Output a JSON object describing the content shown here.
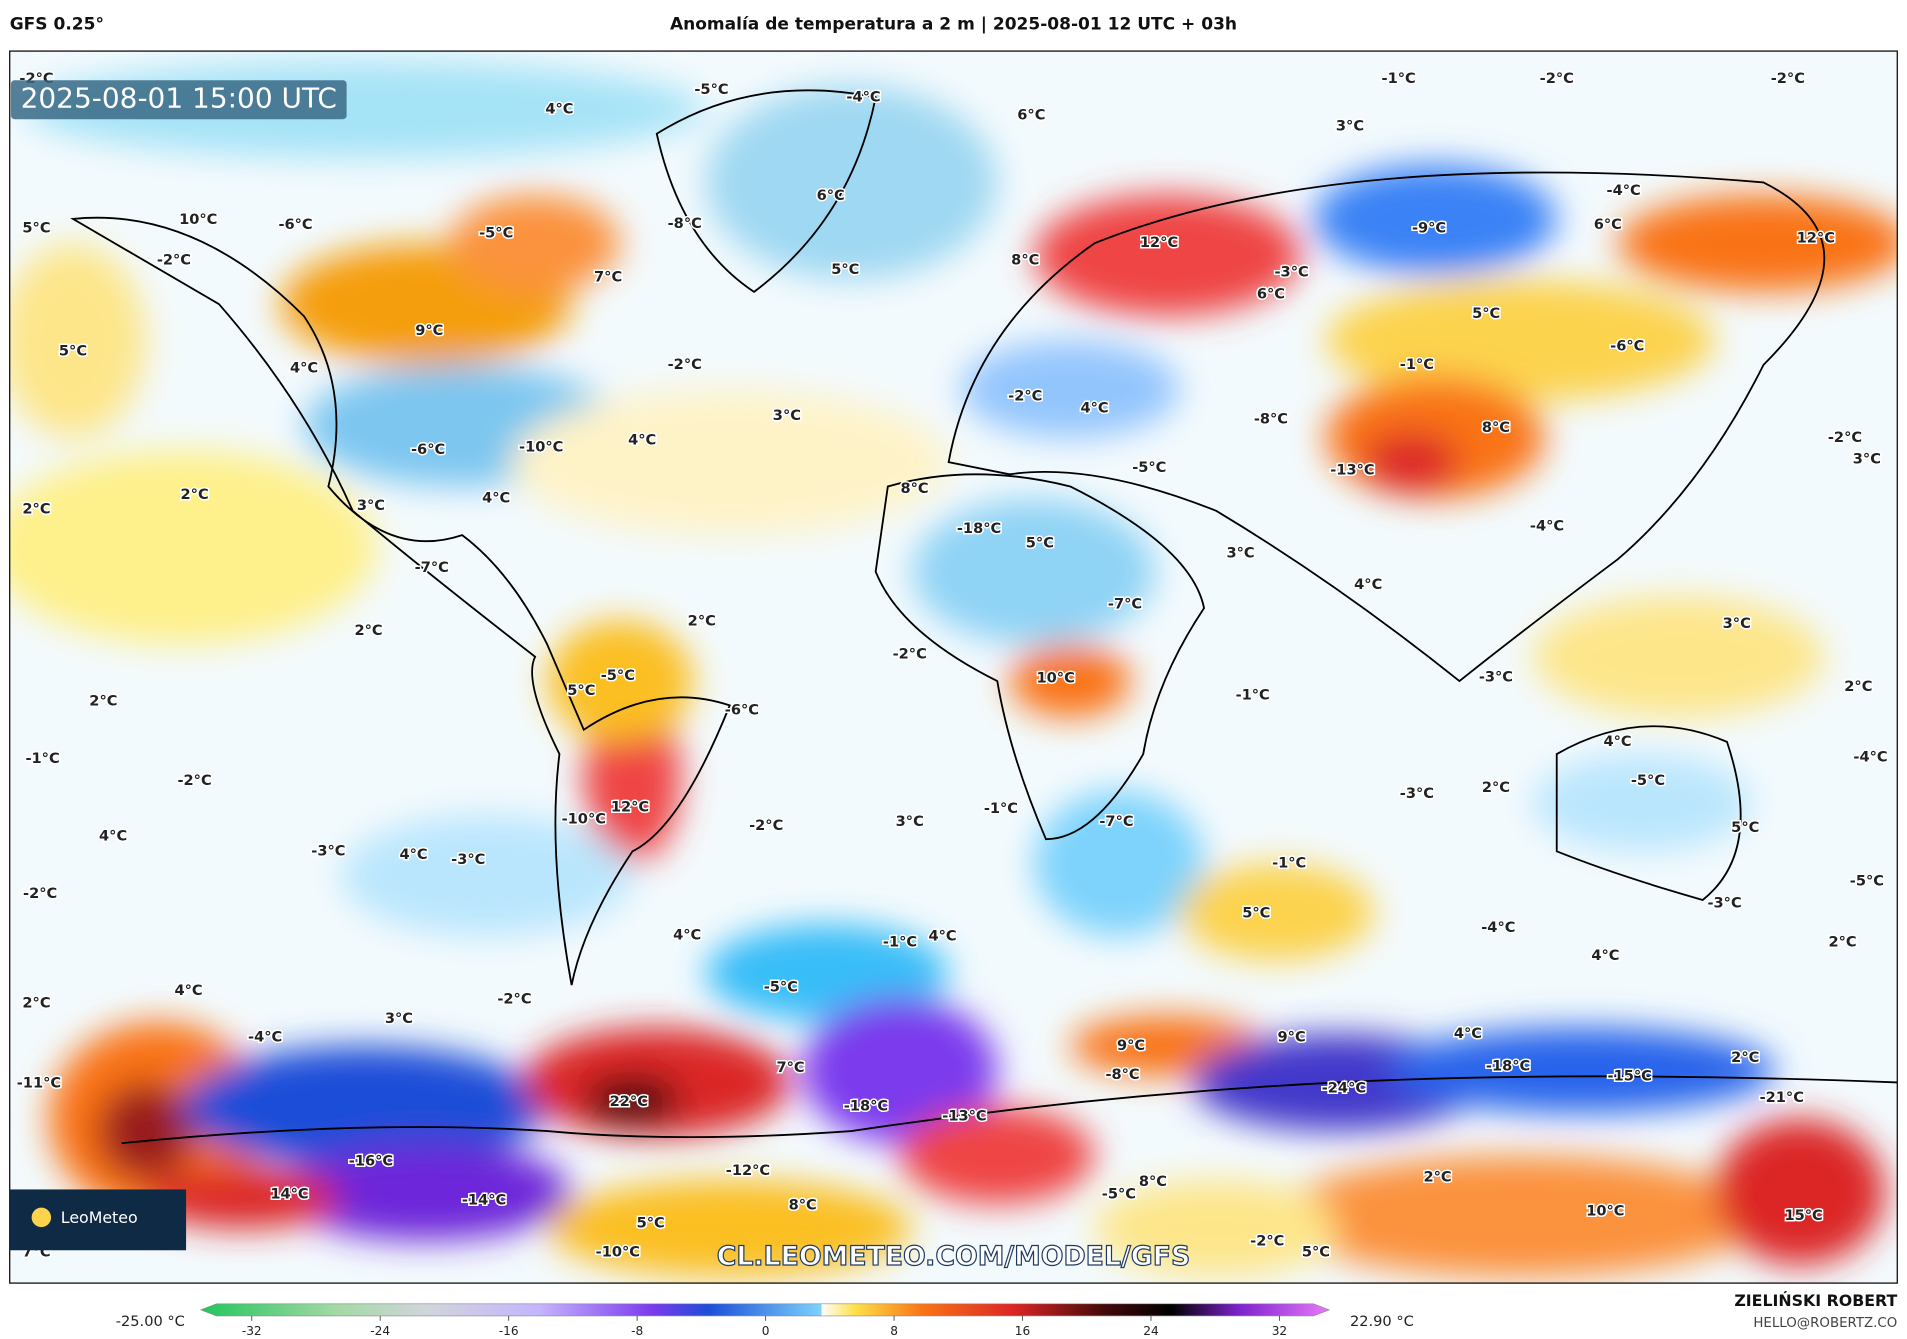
{
  "header": {
    "model": "GFS 0.25°",
    "title": "Anomalía de temperatura a 2 m | 2025-08-01 12 UTC + 03h"
  },
  "timestamp": "2025-08-01 15:00 UTC",
  "watermark": "CL.LEOMETEO.COM/MODEL/GFS",
  "logo": "LeoMeteo",
  "author": {
    "name": "ZIELIŃSKI ROBERT",
    "email": "HELLO@ROBERTZ.CO"
  },
  "colorbar": {
    "min_label": "-25.00 °C",
    "max_label": "22.90 °C",
    "ticks": [
      -32,
      -24,
      -16,
      -8,
      0,
      8,
      16,
      24,
      32
    ]
  },
  "map_labels": [
    "-2°C",
    "-5°C",
    "4°C",
    "-4°C",
    "-1°C",
    "-2°C",
    "-2°C",
    "3°C",
    "6°C",
    "5°C",
    "10°C",
    "-6°C",
    "-2°C",
    "-5°C",
    "-8°C",
    "6°C",
    "7°C",
    "5°C",
    "8°C",
    "12°C",
    "-3°C",
    "6°C",
    "-9°C",
    "6°C",
    "-4°C",
    "12°C",
    "9°C",
    "5°C",
    "4°C",
    "-2°C",
    "5°C",
    "-6°C",
    "-1°C",
    "3°C",
    "4°C",
    "-6°C",
    "-10°C",
    "-2°C",
    "4°C",
    "-8°C",
    "8°C",
    "-2°C",
    "3°C",
    "2°C",
    "2°C",
    "3°C",
    "4°C",
    "8°C",
    "-5°C",
    "-13°C",
    "-18°C",
    "5°C",
    "-4°C",
    "-7°C",
    "3°C",
    "4°C",
    "-7°C",
    "2°C",
    "2°C",
    "3°C",
    "-2°C",
    "-5°C",
    "10°C",
    "-3°C",
    "5°C",
    "-6°C",
    "-1°C",
    "2°C",
    "2°C",
    "-1°C",
    "-2°C",
    "4°C",
    "-5°C",
    "-4°C",
    "2°C",
    "-3°C",
    "12°C",
    "-10°C",
    "-1°C",
    "-2°C",
    "3°C",
    "-7°C",
    "4°C",
    "-3°C",
    "4°C",
    "-3°C",
    "-1°C",
    "5°C",
    "-2°C",
    "-5°C",
    "-3°C",
    "5°C",
    "-4°C",
    "2°C",
    "4°C",
    "-1°C",
    "4°C",
    "4°C",
    "4°C",
    "2°C",
    "-2°C",
    "3°C",
    "-5°C",
    "4°C",
    "-4°C",
    "9°C",
    "9°C",
    "2°C",
    "-11°C",
    "7°C",
    "-8°C",
    "-18°C",
    "-15°C",
    "-24°C",
    "-21°C",
    "22°C",
    "-18°C",
    "-13°C",
    "-16°C",
    "-12°C",
    "8°C",
    "-5°C",
    "2°C",
    "14°C",
    "-14°C",
    "8°C",
    "10°C",
    "15°C",
    "5°C",
    "7°C",
    "-10°C",
    "-2°C",
    "5°C"
  ]
}
